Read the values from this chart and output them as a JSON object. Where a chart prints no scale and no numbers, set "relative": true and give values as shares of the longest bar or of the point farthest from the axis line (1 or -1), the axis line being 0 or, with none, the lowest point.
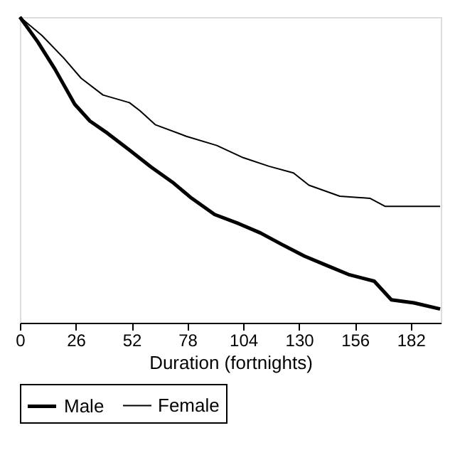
{
  "chart_data": {
    "type": "line",
    "relative": true,
    "xlabel": "Duration (fortnights)",
    "xlim": [
      0,
      196
    ],
    "xticks": [
      0,
      26,
      52,
      78,
      104,
      130,
      156,
      182
    ],
    "legend": "bottom",
    "grid": false,
    "tick_labels": "x",
    "line_style": "solid",
    "marker": "none",
    "series": [
      {
        "name": "Male",
        "color": "#000000",
        "x": [
          0,
          8.2,
          16.3,
          25.5,
          32.6,
          40.8,
          51,
          61,
          71,
          79.5,
          90.7,
          102,
          112,
          122,
          132.5,
          142.7,
          153,
          165,
          173,
          183.5,
          195.7
        ],
        "values": [
          1.0,
          0.92,
          0.83,
          0.715,
          0.66,
          0.62,
          0.565,
          0.51,
          0.46,
          0.41,
          0.354,
          0.324,
          0.294,
          0.256,
          0.218,
          0.188,
          0.158,
          0.136,
          0.075,
          0.065,
          0.045
        ]
      },
      {
        "name": "Female",
        "color": "#000000",
        "x": [
          0,
          10.2,
          20.4,
          28.5,
          38.7,
          51,
          56,
          63,
          77.5,
          91.7,
          104,
          116,
          127.4,
          134.6,
          149,
          163,
          170,
          195.7
        ],
        "values": [
          1.0,
          0.94,
          0.866,
          0.8,
          0.745,
          0.72,
          0.693,
          0.648,
          0.61,
          0.58,
          0.54,
          0.512,
          0.49,
          0.45,
          0.414,
          0.407,
          0.381,
          0.381
        ]
      }
    ]
  }
}
